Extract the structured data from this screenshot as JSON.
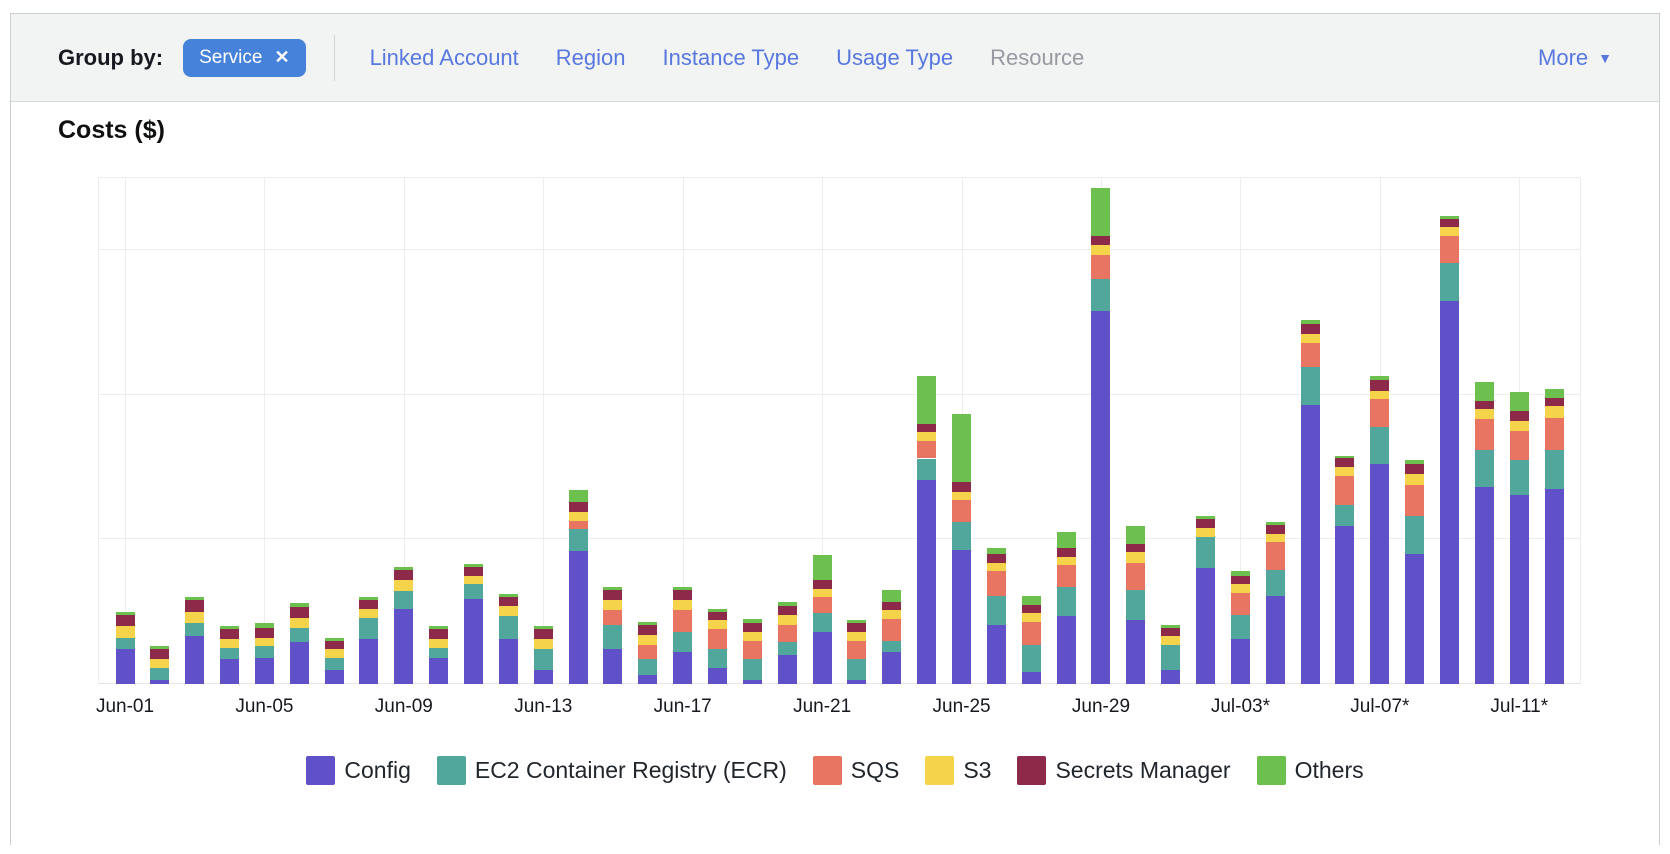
{
  "colors": {
    "chip_blue": "#4681da",
    "link_blue": "#5878e0",
    "disabled_gray": "#969ba2",
    "header_bg": "#f2f3f3",
    "text_dark": "#16191f"
  },
  "header": {
    "group_by_label": "Group by:",
    "chip": {
      "label": "Service",
      "close_icon": "✕"
    },
    "tabs": [
      {
        "label": "Linked Account",
        "enabled": true
      },
      {
        "label": "Region",
        "enabled": true
      },
      {
        "label": "Instance Type",
        "enabled": true
      },
      {
        "label": "Usage Type",
        "enabled": true
      },
      {
        "label": "Resource",
        "enabled": false
      }
    ],
    "more": {
      "label": "More",
      "caret_icon": "▼"
    }
  },
  "chart": {
    "title": "Costs ($)"
  },
  "chart_data": {
    "type": "bar",
    "stacked": true,
    "title": "Costs ($)",
    "ylabel": "Costs ($)",
    "y_axis_labels_visible": false,
    "ylim": [
      0,
      3.5
    ],
    "y_gridlines_at": [
      1,
      2,
      3
    ],
    "grid": true,
    "legend_position": "bottom",
    "categories": [
      "Jun-01",
      "Jun-02",
      "Jun-03",
      "Jun-04",
      "Jun-05",
      "Jun-06",
      "Jun-07",
      "Jun-08",
      "Jun-09",
      "Jun-10",
      "Jun-11",
      "Jun-12",
      "Jun-13",
      "Jun-14",
      "Jun-15",
      "Jun-16",
      "Jun-17",
      "Jun-18",
      "Jun-19",
      "Jun-20",
      "Jun-21",
      "Jun-22",
      "Jun-23",
      "Jun-24",
      "Jun-25",
      "Jun-26",
      "Jun-27",
      "Jun-28",
      "Jun-29",
      "Jun-30",
      "Jul-01",
      "Jul-02",
      "Jul-03",
      "Jul-04",
      "Jul-05",
      "Jul-06",
      "Jul-07",
      "Jul-08",
      "Jul-09",
      "Jul-10",
      "Jul-11",
      "Jul-12"
    ],
    "tick_labels": [
      "Jun-01",
      "Jun-05",
      "Jun-09",
      "Jun-13",
      "Jun-17",
      "Jun-21",
      "Jun-25",
      "Jun-29",
      "Jul-03*",
      "Jul-07*",
      "Jul-11*"
    ],
    "tick_every": 4,
    "series": [
      {
        "name": "Config",
        "color": "#6051c8",
        "values": [
          0.24,
          0.03,
          0.33,
          0.17,
          0.18,
          0.29,
          0.1,
          0.31,
          0.52,
          0.18,
          0.59,
          0.31,
          0.1,
          0.92,
          0.24,
          0.06,
          0.22,
          0.11,
          0.03,
          0.2,
          0.36,
          0.03,
          0.22,
          1.41,
          0.93,
          0.41,
          0.08,
          0.47,
          2.58,
          0.44,
          0.1,
          0.8,
          0.31,
          0.61,
          1.93,
          1.09,
          1.52,
          0.9,
          2.65,
          1.36,
          1.31,
          1.35
        ]
      },
      {
        "name": "EC2 Container Registry (ECR)",
        "color": "#52a79d",
        "values": [
          0.08,
          0.08,
          0.09,
          0.08,
          0.08,
          0.1,
          0.08,
          0.15,
          0.12,
          0.07,
          0.1,
          0.16,
          0.14,
          0.15,
          0.17,
          0.11,
          0.14,
          0.13,
          0.14,
          0.09,
          0.13,
          0.14,
          0.08,
          0.15,
          0.19,
          0.2,
          0.19,
          0.2,
          0.22,
          0.21,
          0.17,
          0.22,
          0.17,
          0.18,
          0.26,
          0.15,
          0.26,
          0.26,
          0.26,
          0.26,
          0.24,
          0.27
        ]
      },
      {
        "name": "SQS",
        "color": "#e87562",
        "values": [
          0,
          0,
          0,
          0,
          0,
          0,
          0,
          0,
          0,
          0,
          0,
          0,
          0,
          0.06,
          0.1,
          0.1,
          0.15,
          0.14,
          0.13,
          0.12,
          0.11,
          0.13,
          0.15,
          0.12,
          0.15,
          0.17,
          0.16,
          0.15,
          0.17,
          0.19,
          0,
          0,
          0.15,
          0.19,
          0.17,
          0.2,
          0.19,
          0.22,
          0.19,
          0.21,
          0.2,
          0.22
        ]
      },
      {
        "name": "S3",
        "color": "#f5d44b",
        "values": [
          0.08,
          0.06,
          0.08,
          0.06,
          0.06,
          0.07,
          0.06,
          0.06,
          0.08,
          0.06,
          0.06,
          0.07,
          0.07,
          0.06,
          0.07,
          0.07,
          0.07,
          0.06,
          0.06,
          0.07,
          0.06,
          0.06,
          0.06,
          0.06,
          0.06,
          0.06,
          0.06,
          0.06,
          0.07,
          0.07,
          0.06,
          0.06,
          0.06,
          0.06,
          0.06,
          0.06,
          0.06,
          0.07,
          0.06,
          0.07,
          0.07,
          0.08
        ]
      },
      {
        "name": "Secrets Manager",
        "color": "#8d2a4a",
        "values": [
          0.08,
          0.07,
          0.08,
          0.07,
          0.07,
          0.07,
          0.06,
          0.06,
          0.07,
          0.07,
          0.06,
          0.06,
          0.07,
          0.07,
          0.07,
          0.07,
          0.07,
          0.06,
          0.06,
          0.06,
          0.06,
          0.06,
          0.06,
          0.06,
          0.07,
          0.06,
          0.06,
          0.06,
          0.06,
          0.06,
          0.06,
          0.06,
          0.06,
          0.06,
          0.07,
          0.06,
          0.07,
          0.07,
          0.06,
          0.06,
          0.07,
          0.06
        ]
      },
      {
        "name": "Others",
        "color": "#6bc04e",
        "values": [
          0.02,
          0.02,
          0.02,
          0.02,
          0.03,
          0.03,
          0.02,
          0.02,
          0.02,
          0.02,
          0.02,
          0.02,
          0.02,
          0.08,
          0.02,
          0.02,
          0.02,
          0.02,
          0.03,
          0.03,
          0.17,
          0.02,
          0.08,
          0.33,
          0.47,
          0.04,
          0.06,
          0.11,
          0.33,
          0.12,
          0.02,
          0.02,
          0.03,
          0.02,
          0.03,
          0.02,
          0.03,
          0.03,
          0.02,
          0.13,
          0.13,
          0.06
        ]
      }
    ]
  }
}
